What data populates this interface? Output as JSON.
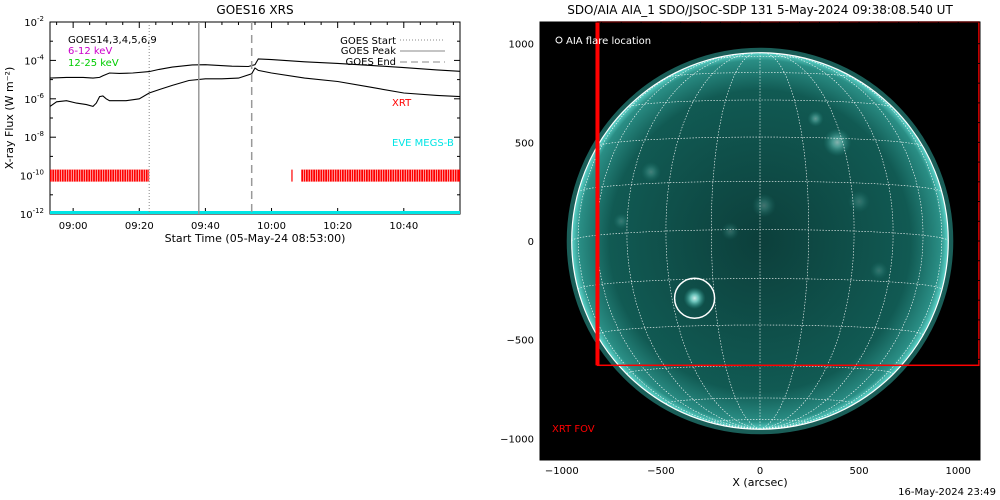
{
  "chart_data": [
    {
      "type": "line",
      "title": "GOES16 XRS",
      "xlabel": "Start Time (05-May-24 08:53:00)",
      "ylabel": "X-ray Flux (W m⁻²)",
      "y_scale": "log",
      "xlim": [
        "08:53",
        "10:57"
      ],
      "ylim": [
        1e-12,
        0.01
      ],
      "x_ticks": [
        "09:00",
        "09:20",
        "09:40",
        "10:00",
        "10:20",
        "10:40"
      ],
      "y_ticks": [
        {
          "mant": "10",
          "exp": "-2",
          "value": 0.01
        },
        {
          "mant": "10",
          "exp": "-4",
          "value": 0.0001
        },
        {
          "mant": "10",
          "exp": "-6",
          "value": 1e-06
        },
        {
          "mant": "10",
          "exp": "-8",
          "value": 1e-08
        },
        {
          "mant": "10",
          "exp": "-10",
          "value": 1e-10
        },
        {
          "mant": "10",
          "exp": "-12",
          "value": 1e-12
        }
      ],
      "legend_left": [
        {
          "label": "GOES14,3,4,5,6,9",
          "color": "#000000"
        },
        {
          "label": "6-12 keV",
          "color": "#cc00cc"
        },
        {
          "label": "12-25 keV",
          "color": "#00cc00"
        }
      ],
      "legend_right": [
        {
          "label": "GOES Start",
          "style": "dotted"
        },
        {
          "label": "GOES Peak",
          "style": "solid"
        },
        {
          "label": "GOES End",
          "style": "dashed"
        }
      ],
      "annotations": [
        {
          "text": "XRT",
          "color": "#ff0000"
        },
        {
          "text": "EVE MEGS-B",
          "color": "#00e5e5"
        }
      ],
      "goes_start": "09:23",
      "goes_peak": "09:38",
      "goes_end": "09:54",
      "series": [
        {
          "color": "#000000",
          "x": [
            "08:53",
            "08:58",
            "09:03",
            "09:06",
            "09:08",
            "09:09",
            "09:11",
            "09:14",
            "09:18",
            "09:23",
            "09:26",
            "09:30",
            "09:36",
            "09:40",
            "09:44",
            "09:48",
            "09:53",
            "09:55",
            "09:56",
            "10:00",
            "10:10",
            "10:20",
            "10:30",
            "10:40",
            "10:50",
            "10:57"
          ],
          "y": [
            1.2e-05,
            1.3e-05,
            1.3e-05,
            1.2e-05,
            1.3e-05,
            1.6e-05,
            2.2e-05,
            2.1e-05,
            2.2e-05,
            2.6e-05,
            3.4e-05,
            4.5e-05,
            5.8e-05,
            6e-05,
            5.5e-05,
            5e-05,
            4.8e-05,
            6e-05,
            0.00012,
            0.00011,
            8.5e-05,
            7e-05,
            5.5e-05,
            4.2e-05,
            3.2e-05,
            2.7e-05
          ]
        },
        {
          "color": "#000000",
          "x": [
            "08:53",
            "08:55",
            "08:58",
            "09:01",
            "09:04",
            "09:06",
            "09:07",
            "09:08",
            "09:09",
            "09:10",
            "09:11",
            "09:13",
            "09:16",
            "09:20",
            "09:23",
            "09:26",
            "09:30",
            "09:35",
            "09:40",
            "09:45",
            "09:50",
            "09:54",
            "09:55",
            "09:56",
            "10:00",
            "10:10",
            "10:20",
            "10:30",
            "10:40",
            "10:50",
            "10:57"
          ],
          "y": [
            4e-07,
            7e-07,
            8e-07,
            6e-07,
            5e-07,
            4e-07,
            6e-07,
            1.3e-06,
            1.4e-06,
            1e-06,
            8e-07,
            8e-07,
            8e-07,
            1e-06,
            2e-06,
            3e-06,
            5e-06,
            9e-06,
            1.1e-05,
            1.1e-05,
            1.2e-05,
            2e-05,
            4e-05,
            3e-05,
            2.2e-05,
            1.2e-05,
            8e-06,
            4e-06,
            2e-06,
            1.5e-06,
            1.3e-06
          ]
        }
      ],
      "xrt_coverage": [
        [
          "08:53",
          "09:23"
        ],
        [
          "10:06",
          "10:06"
        ],
        [
          "10:09",
          "10:57"
        ]
      ],
      "eve_coverage": [
        [
          "08:53",
          "10:57"
        ]
      ]
    },
    {
      "type": "image",
      "title": "SDO/AIA AIA_1 SDO/JSOC-SDP 131  5-May-2024 09:38:08.540 UT",
      "xlabel": "X (arcsec)",
      "ylabel": "",
      "xlim": [
        -1110,
        1110
      ],
      "ylim": [
        -1110,
        1110
      ],
      "x_ticks": [
        -1000,
        -500,
        0,
        500,
        1000
      ],
      "y_ticks": [
        1000,
        500,
        0,
        -500,
        -1000
      ],
      "solar_radius": 950,
      "legend": "AIA flare location",
      "flare_location": [
        -330,
        -290
      ],
      "xrt_fov_label": "XRT FOV",
      "xrt_fov_x": [
        -820,
        1110
      ],
      "xrt_fov_y": [
        -630,
        1110
      ],
      "colors": {
        "xrt": "#ff0000",
        "disk": "#0f5a52",
        "grid": "#ffffff"
      }
    }
  ],
  "footer": {
    "timestamp": "16-May-2024 23:49"
  }
}
